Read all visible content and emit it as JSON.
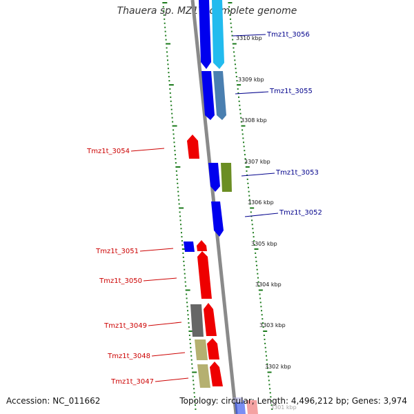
{
  "title": "Thauera sp. MZ1T, complete genome",
  "accession": "Accession: NC_011662",
  "summary": "Topology: circular; Length: 4,496,212 bp; Genes: 3,974",
  "colors": {
    "forward_label": "#00008b",
    "reverse_label": "#cc0000",
    "backbone": "#8a8a8a",
    "tick": "#1a7a1a",
    "blue": "#0000ee",
    "cyan": "#22bbee",
    "steelblue": "#4a7fb0",
    "olive": "#6b8e23",
    "red": "#ee0000",
    "gray": "#666666",
    "khaki": "#b5b070"
  },
  "tick_labels": [
    "3310 kbp",
    "3309 kbp",
    "3308 kbp",
    "3307 kbp",
    "3306 kbp",
    "3305 kbp",
    "3304 kbp",
    "3303 kbp",
    "3302 kbp",
    "3301 kbp"
  ],
  "forward_labels": [
    "Tmz1t_3056",
    "Tmz1t_3055",
    "Tmz1t_3053",
    "Tmz1t_3052"
  ],
  "reverse_labels": [
    "Tmz1t_3054",
    "Tmz1t_3051",
    "Tmz1t_3050",
    "Tmz1t_3049",
    "Tmz1t_3048",
    "Tmz1t_3047"
  ]
}
